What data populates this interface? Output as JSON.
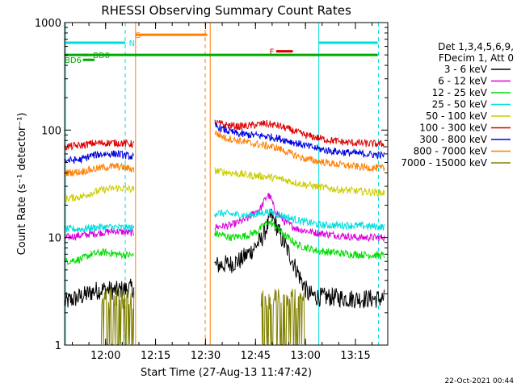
{
  "chart_data": {
    "type": "line",
    "title": "RHESSI Observing Summary Count Rates",
    "ylabel": "Count Rate (s⁻¹ detector⁻¹)",
    "xlabel": "Start Time (27-Aug-13 11:47:42)",
    "x_unit": "minutes since 11:47:42",
    "xlim": [
      0,
      97
    ],
    "ylim": [
      1,
      1000
    ],
    "yscale": "log",
    "x_ticks": [
      {
        "label": "12:00",
        "value": 12.3
      },
      {
        "label": "12:15",
        "value": 27.3
      },
      {
        "label": "12:30",
        "value": 42.3
      },
      {
        "label": "12:45",
        "value": 57.3
      },
      {
        "label": "13:00",
        "value": 72.3
      },
      {
        "label": "13:15",
        "value": 87.3
      }
    ],
    "y_ticks": [
      {
        "label": "1",
        "value": 1
      },
      {
        "label": "10",
        "value": 10
      },
      {
        "label": "100",
        "value": 100
      },
      {
        "label": "1000",
        "value": 1000
      }
    ],
    "legend": {
      "position": "right",
      "header": [
        "Det 1,3,4,5,6,9,",
        "FDecim 1, Att 0"
      ],
      "entries": [
        {
          "label": "3 - 6 keV",
          "color": "#000000"
        },
        {
          "label": "6 - 12 keV",
          "color": "#dd00dd"
        },
        {
          "label": "12 - 25 keV",
          "color": "#00dd00"
        },
        {
          "label": "25 - 50 keV",
          "color": "#00dddd"
        },
        {
          "label": "50 - 100 keV",
          "color": "#cccc00"
        },
        {
          "label": "100 - 300 keV",
          "color": "#dd0000"
        },
        {
          "label": "300 - 800 keV",
          "color": "#0000dd"
        },
        {
          "label": "800 - 7000 keV",
          "color": "#ff7f00"
        },
        {
          "label": "7000 - 15000 keV",
          "color": "#808000"
        }
      ]
    },
    "series": [
      {
        "name": "3 - 6 keV",
        "color": "#000000",
        "segments": [
          [
            [
              0,
              2.5
            ],
            [
              3,
              2.7
            ],
            [
              6,
              2.9
            ],
            [
              9,
              3.2
            ],
            [
              12,
              3.3
            ],
            [
              15,
              3.2
            ],
            [
              18,
              3.3
            ],
            [
              20.8,
              3.4
            ]
          ],
          [
            [
              45,
              5.5
            ],
            [
              50,
              5.7
            ],
            [
              53,
              6.2
            ],
            [
              56,
              7.5
            ],
            [
              59,
              9.5
            ],
            [
              61,
              13
            ],
            [
              62,
              16
            ],
            [
              63,
              14
            ],
            [
              65,
              10
            ],
            [
              67,
              7.5
            ],
            [
              69,
              5.5
            ],
            [
              71,
              4
            ],
            [
              73,
              3
            ],
            [
              76,
              2.8
            ],
            [
              80,
              2.8
            ],
            [
              86,
              2.7
            ],
            [
              92,
              2.7
            ],
            [
              96,
              2.7
            ]
          ]
        ]
      },
      {
        "name": "6 - 12 keV",
        "color": "#dd00dd",
        "segments": [
          [
            [
              0,
              10
            ],
            [
              5,
              10.5
            ],
            [
              10,
              11
            ],
            [
              15,
              11.5
            ],
            [
              20.8,
              11
            ]
          ],
          [
            [
              45,
              12.5
            ],
            [
              50,
              13
            ],
            [
              55,
              15
            ],
            [
              59,
              19
            ],
            [
              61,
              25
            ],
            [
              62,
              23
            ],
            [
              63,
              18
            ],
            [
              66,
              14
            ],
            [
              70,
              12
            ],
            [
              76,
              11
            ],
            [
              82,
              10.5
            ],
            [
              88,
              10
            ],
            [
              96,
              10
            ]
          ]
        ]
      },
      {
        "name": "12 - 25 keV",
        "color": "#00dd00",
        "segments": [
          [
            [
              0,
              6
            ],
            [
              5,
              6.3
            ],
            [
              8,
              7
            ],
            [
              12,
              7.3
            ],
            [
              16,
              7
            ],
            [
              20.8,
              6.8
            ]
          ],
          [
            [
              45,
              11
            ],
            [
              50,
              10
            ],
            [
              55,
              10.5
            ],
            [
              58,
              11.5
            ],
            [
              61,
              14
            ],
            [
              63,
              13
            ],
            [
              66,
              10.5
            ],
            [
              70,
              8.5
            ],
            [
              76,
              7.5
            ],
            [
              86,
              7
            ],
            [
              96,
              6.8
            ]
          ]
        ]
      },
      {
        "name": "25 - 50 keV",
        "color": "#00dddd",
        "segments": [
          [
            [
              0,
              12
            ],
            [
              5,
              12
            ],
            [
              10,
              12.5
            ],
            [
              15,
              12.5
            ],
            [
              20.8,
              12.3
            ]
          ],
          [
            [
              45,
              17
            ],
            [
              50,
              16.5
            ],
            [
              55,
              16
            ],
            [
              58,
              16.5
            ],
            [
              61,
              17.5
            ],
            [
              64,
              16.5
            ],
            [
              68,
              15
            ],
            [
              72,
              14
            ],
            [
              78,
              13
            ],
            [
              86,
              13
            ],
            [
              96,
              12.5
            ]
          ]
        ]
      },
      {
        "name": "50 - 100 keV",
        "color": "#cccc00",
        "segments": [
          [
            [
              0,
              23
            ],
            [
              5,
              24
            ],
            [
              8,
              26
            ],
            [
              12,
              28
            ],
            [
              16,
              29
            ],
            [
              20.8,
              28
            ]
          ],
          [
            [
              45,
              42
            ],
            [
              50,
              40
            ],
            [
              55,
              38
            ],
            [
              60,
              37
            ],
            [
              65,
              35
            ],
            [
              70,
              32
            ],
            [
              75,
              30
            ],
            [
              82,
              28
            ],
            [
              88,
              27
            ],
            [
              96,
              26
            ]
          ]
        ]
      },
      {
        "name": "100 - 300 keV",
        "color": "#dd0000",
        "segments": [
          [
            [
              0,
              70
            ],
            [
              5,
              72
            ],
            [
              8,
              75
            ],
            [
              12,
              76
            ],
            [
              16,
              76
            ],
            [
              20.8,
              74
            ]
          ],
          [
            [
              45,
              118
            ],
            [
              48,
              112
            ],
            [
              52,
              108
            ],
            [
              56,
              110
            ],
            [
              60,
              115
            ],
            [
              64,
              110
            ],
            [
              68,
              100
            ],
            [
              72,
              90
            ],
            [
              78,
              82
            ],
            [
              84,
              77
            ],
            [
              90,
              75
            ],
            [
              96,
              74
            ]
          ]
        ]
      },
      {
        "name": "300 - 800 keV",
        "color": "#0000dd",
        "segments": [
          [
            [
              0,
              52
            ],
            [
              5,
              53
            ],
            [
              8,
              58
            ],
            [
              12,
              60
            ],
            [
              16,
              60
            ],
            [
              20.8,
              56
            ]
          ],
          [
            [
              45,
              110
            ],
            [
              48,
              100
            ],
            [
              52,
              92
            ],
            [
              56,
              90
            ],
            [
              60,
              88
            ],
            [
              64,
              84
            ],
            [
              68,
              78
            ],
            [
              72,
              72
            ],
            [
              78,
              65
            ],
            [
              84,
              62
            ],
            [
              90,
              60
            ],
            [
              96,
              58
            ]
          ]
        ]
      },
      {
        "name": "800 - 7000 keV",
        "color": "#ff7f00",
        "segments": [
          [
            [
              0,
              40
            ],
            [
              5,
              41
            ],
            [
              8,
              43
            ],
            [
              12,
              45
            ],
            [
              16,
              46
            ],
            [
              20.8,
              43
            ]
          ],
          [
            [
              45,
              95
            ],
            [
              48,
              85
            ],
            [
              52,
              80
            ],
            [
              56,
              75
            ],
            [
              60,
              72
            ],
            [
              64,
              68
            ],
            [
              68,
              60
            ],
            [
              72,
              54
            ],
            [
              78,
              50
            ],
            [
              84,
              47
            ],
            [
              90,
              45
            ],
            [
              96,
              44
            ]
          ]
        ]
      },
      {
        "name": "7000 - 15000 keV",
        "color": "#808000",
        "segments": [
          [
            [
              11,
              2
            ],
            [
              20.8,
              2
            ]
          ],
          [
            [
              59,
              2
            ],
            [
              72,
              2
            ]
          ]
        ]
      }
    ],
    "mode_bars": [
      {
        "label": "S",
        "color": "#ff7f00",
        "x0": 21.3,
        "x1": 42.8,
        "y": 770,
        "label_x": 21.3
      },
      {
        "label": "F",
        "color": "#dd0000",
        "x0": 63.5,
        "x1": 68.5,
        "y": 540,
        "label_x": 61.5
      },
      {
        "label": "N",
        "color": "#00dddd",
        "x0": 0,
        "x1": 18.2,
        "y": 650,
        "label_x": 19.3
      },
      {
        "label": "",
        "color": "#00dddd",
        "x0": 76.3,
        "x1": 94,
        "y": 650,
        "label_x": null
      },
      {
        "label": "",
        "color": "#00aa00",
        "x0": 0,
        "x1": 94,
        "y": 500,
        "label_x": null
      },
      {
        "label": "BD0",
        "color": "#00aa00",
        "x0": 5,
        "x1": 7,
        "y": 500,
        "label_x": 8.5
      },
      {
        "label": "BD6",
        "color": "#00aa00",
        "x0": 5.5,
        "x1": 9,
        "y": 450,
        "label_x": 0
      }
    ],
    "vlines": [
      {
        "x": 0.3,
        "color": "#00dddd",
        "dash": false
      },
      {
        "x": 18.2,
        "color": "#00dddd",
        "dash": true
      },
      {
        "x": 21.3,
        "color": "#ff7f00",
        "dash": false
      },
      {
        "x": 42.2,
        "color": "#ff7f00",
        "dash": true
      },
      {
        "x": 43.7,
        "color": "#ff7f00",
        "dash": false
      },
      {
        "x": 76.3,
        "color": "#00dddd",
        "dash": false
      },
      {
        "x": 94.2,
        "color": "#00dddd",
        "dash": true
      }
    ]
  },
  "footer_date": "22-Oct-2021 00:44"
}
